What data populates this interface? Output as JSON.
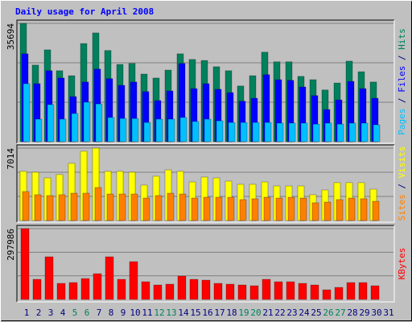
{
  "chart_data": {
    "type": "bar",
    "title": "Daily usage for April 2008",
    "categories": [
      "1",
      "2",
      "3",
      "4",
      "5",
      "6",
      "7",
      "8",
      "9",
      "10",
      "11",
      "12",
      "13",
      "14",
      "15",
      "16",
      "17",
      "18",
      "19",
      "20",
      "21",
      "22",
      "23",
      "24",
      "25",
      "26",
      "27",
      "28",
      "29",
      "30",
      "31"
    ],
    "category_colors": [
      "#000080",
      "#000080",
      "#000080",
      "#000080",
      "#00805c",
      "#00805c",
      "#000080",
      "#000080",
      "#000080",
      "#000080",
      "#000080",
      "#00805c",
      "#00805c",
      "#000080",
      "#000080",
      "#000080",
      "#000080",
      "#000080",
      "#00805c",
      "#00805c",
      "#000080",
      "#000080",
      "#000080",
      "#000080",
      "#000080",
      "#00805c",
      "#00805c",
      "#000080",
      "#000080",
      "#000080",
      "#000080"
    ],
    "legend_separator": " / ",
    "grid": true,
    "panels": [
      {
        "ylim": [
          0,
          35694
        ],
        "yticks": [
          35694
        ],
        "series": [
          {
            "name": "Hits",
            "color": "#00805c",
            "values": [
              35694,
              23100,
              27700,
              21400,
              19900,
              29600,
              32800,
              27500,
              23300,
              23600,
              20400,
              19200,
              21600,
              26500,
              24800,
              24500,
              22600,
              21400,
              16800,
              19900,
              27000,
              24100,
              24100,
              19700,
              18700,
              15600,
              17700,
              24300,
              21100,
              18000,
              null
            ]
          },
          {
            "name": "Files",
            "color": "#0000ff",
            "values": [
              26500,
              17500,
              21400,
              19200,
              13600,
              18000,
              21900,
              19000,
              17000,
              18000,
              15100,
              12400,
              15300,
              23600,
              16000,
              17500,
              15800,
              14800,
              12200,
              13100,
              20200,
              18700,
              18500,
              16500,
              13900,
              9700,
              12600,
              18200,
              16000,
              13100,
              null
            ]
          },
          {
            "name": "Pages",
            "color": "#00c0ff",
            "values": [
              17500,
              6800,
              11200,
              6800,
              8500,
              11900,
              11400,
              7300,
              7000,
              7000,
              5800,
              6800,
              6800,
              7300,
              6100,
              6800,
              6300,
              5800,
              5800,
              5800,
              5800,
              5600,
              5600,
              5600,
              5300,
              5600,
              5300,
              5600,
              5600,
              5100,
              null
            ]
          }
        ]
      },
      {
        "ylim": [
          0,
          7014
        ],
        "yticks": [
          7014
        ],
        "series": [
          {
            "name": "Visits",
            "color": "#ffff00",
            "values": [
              4760,
              4680,
              4130,
              4450,
              5540,
              6710,
              7014,
              4760,
              4760,
              4680,
              3430,
              4290,
              4910,
              4760,
              3740,
              4210,
              4130,
              3820,
              3510,
              3510,
              3740,
              3350,
              3350,
              3350,
              2500,
              2960,
              3670,
              3670,
              3670,
              3040,
              null
            ]
          },
          {
            "name": "Sites",
            "color": "#ff8000",
            "values": [
              2810,
              2500,
              2420,
              2500,
              2650,
              2650,
              3200,
              2570,
              2570,
              2570,
              2180,
              2420,
              2650,
              2570,
              2180,
              2260,
              2260,
              2260,
              2030,
              2110,
              2260,
              2180,
              2260,
              2180,
              1720,
              1790,
              2030,
              2180,
              2110,
              1870,
              null
            ]
          }
        ]
      },
      {
        "ylim": [
          0,
          297986
        ],
        "yticks": [
          297986
        ],
        "series": [
          {
            "name": "KBytes",
            "color": "#ff0000",
            "values": [
              297986,
              84700,
              179500,
              67700,
              71100,
              88000,
              108400,
              179500,
              84700,
              159100,
              74500,
              60900,
              64300,
              98200,
              84700,
              81300,
              67700,
              64300,
              60900,
              57600,
              84700,
              74500,
              74500,
              67700,
              60900,
              40600,
              50800,
              71100,
              71100,
              57600,
              null
            ]
          }
        ]
      }
    ]
  }
}
